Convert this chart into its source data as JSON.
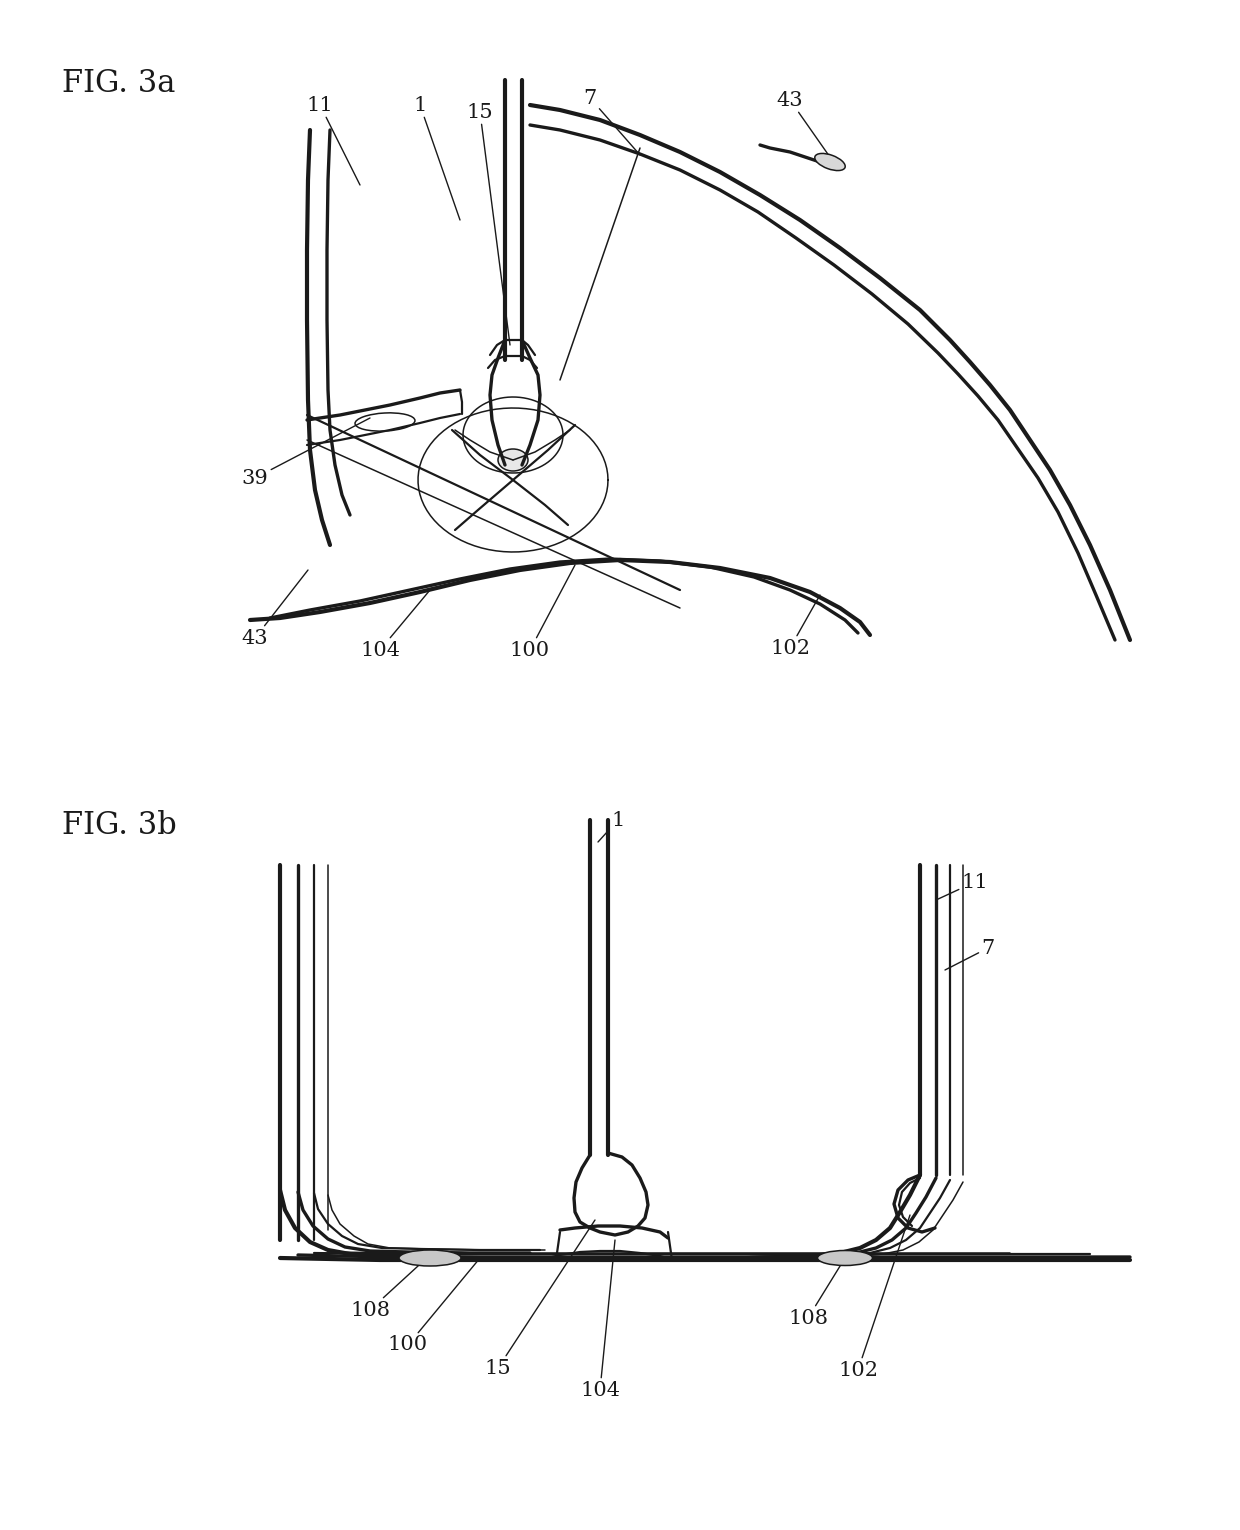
{
  "background_color": "#ffffff",
  "fig3a_label": "FIG. 3a",
  "fig3b_label": "FIG. 3b",
  "line_color": "#1a1a1a",
  "line_width": 1.8,
  "label_fontsize": 22,
  "annotation_fontsize": 15
}
